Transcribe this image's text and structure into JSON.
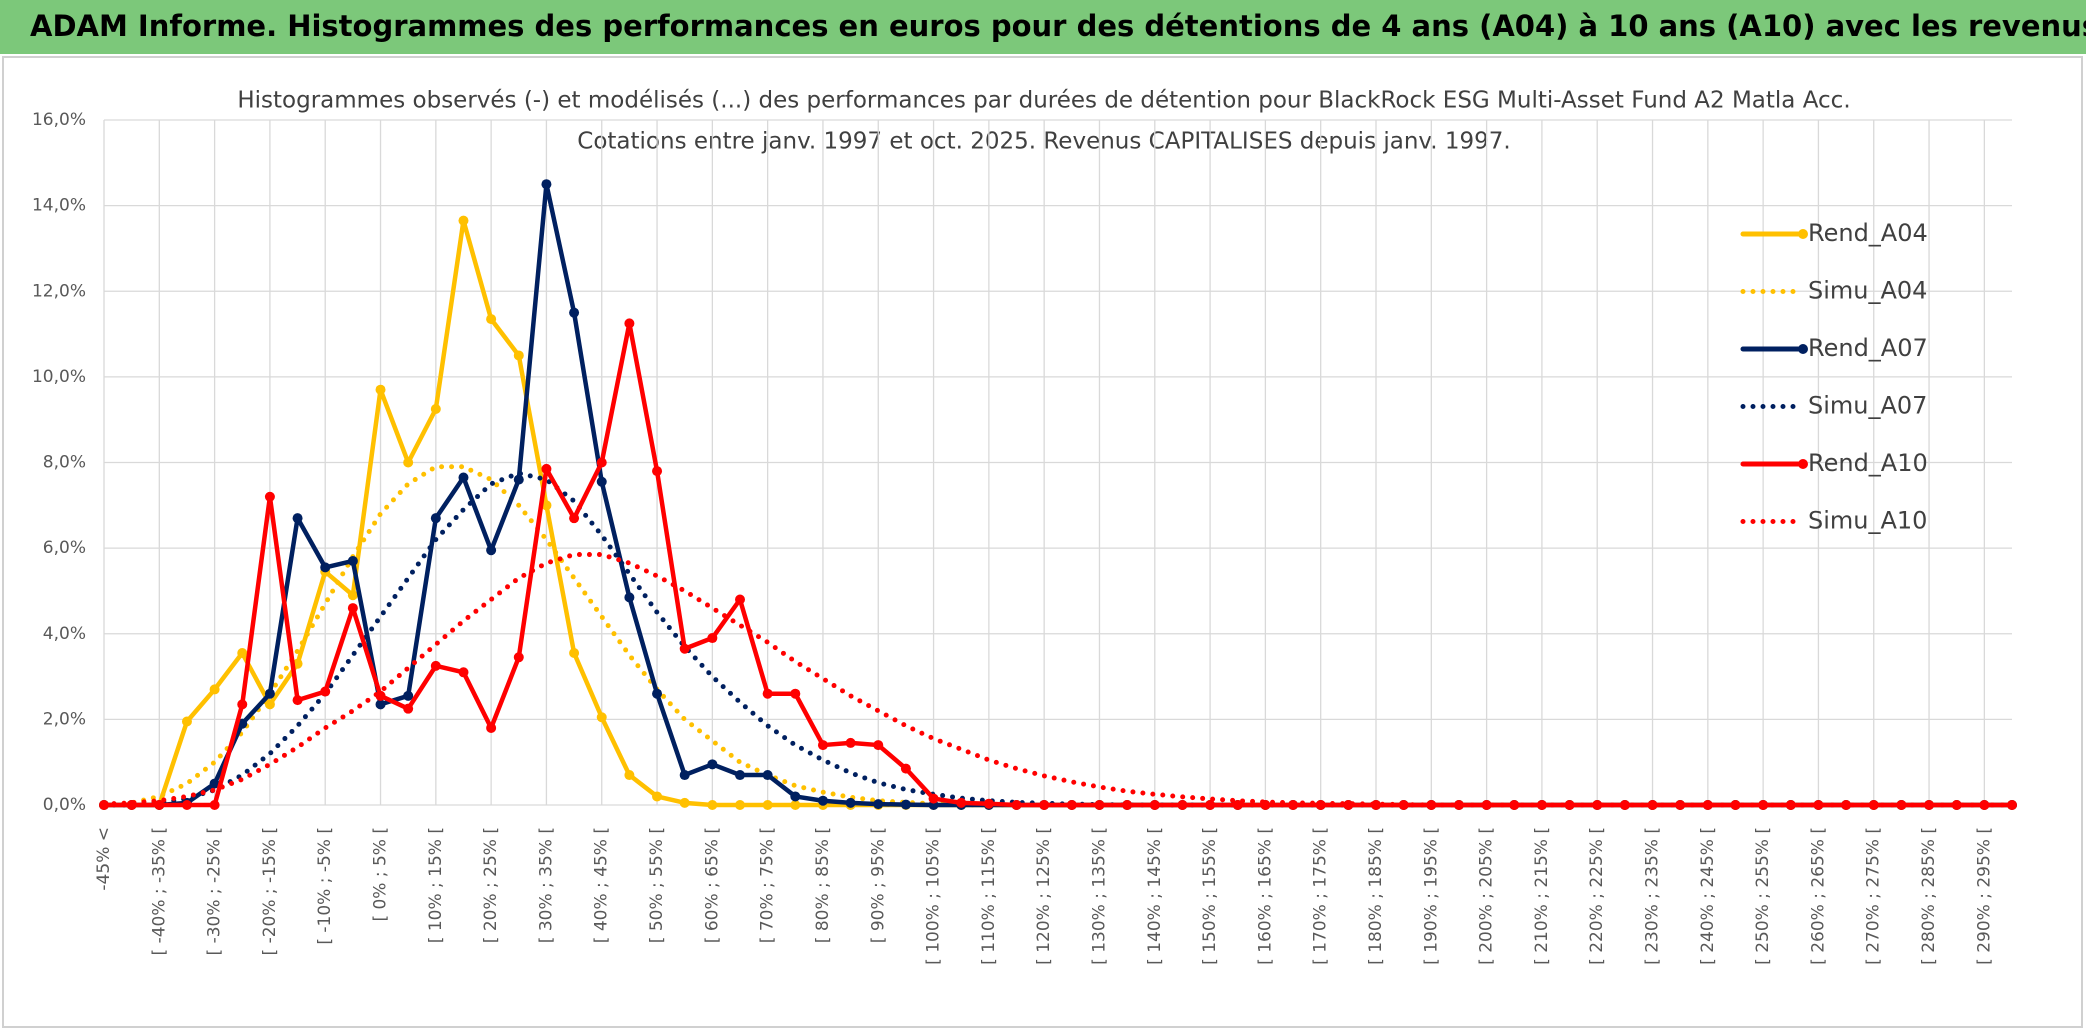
{
  "header": {
    "title": "ADAM Informe. Histogrammes des performances en euros pour des détentions de 4 ans (A04) à 10 ans (A10) avec les revenus connus capitalisés"
  },
  "chart_data": {
    "type": "line",
    "title": [
      "Histogrammes observés (-) et modélisés (...) des performances par durées de détention pour BlackRock ESG Multi-Asset Fund A2 Matla Acc.",
      "Cotations entre janv. 1997 et oct. 2025. Revenus CAPITALISES depuis janv. 1997."
    ],
    "categories": [
      "-45% <",
      null,
      "[ -40% ; -35% [",
      null,
      "[ -30% ; -25% [",
      null,
      "[ -20% ; -15% [",
      null,
      "[ -10% ; -5% [",
      null,
      "[ 0% ; 5% [",
      null,
      "[ 10% ; 15% [",
      null,
      "[ 20% ; 25% [",
      null,
      "[ 30% ; 35% [",
      null,
      "[ 40% ; 45% [",
      null,
      "[ 50% ; 55% [",
      null,
      "[ 60% ; 65% [",
      null,
      "[ 70% ; 75% [",
      null,
      "[ 80% ; 85% [",
      null,
      "[ 90% ; 95% [",
      null,
      "[ 100% ; 105% [",
      null,
      "[ 110% ; 115% [",
      null,
      "[ 120% ; 125% [",
      null,
      "[ 130% ; 135% [",
      null,
      "[ 140% ; 145% [",
      null,
      "[ 150% ; 155% [",
      null,
      "[ 160% ; 165% [",
      null,
      "[ 170% ; 175% [",
      null,
      "[ 180% ; 185% [",
      null,
      "[ 190% ; 195% [",
      null,
      "[ 200% ; 205% [",
      null,
      "[ 210% ; 215% [",
      null,
      "[ 220% ; 225% [",
      null,
      "[ 230% ; 235% [",
      null,
      "[ 240% ; 245% [",
      null,
      "[ 250% ; 255% [",
      null,
      "[ 260% ; 265% [",
      null,
      "[ 270% ; 275% [",
      null,
      "[ 280% ; 285% [",
      null,
      "[ 290% ; 295% [",
      null
    ],
    "series": [
      {
        "name": "Rend_A04",
        "color": "#ffc000",
        "style": "solid",
        "markers": true,
        "values": [
          0,
          0,
          0,
          1.95,
          2.7,
          3.55,
          2.35,
          3.3,
          5.45,
          4.9,
          9.7,
          8.0,
          9.25,
          13.65,
          11.35,
          10.5,
          7.0,
          3.55,
          2.05,
          0.7,
          0.2,
          0.05,
          0,
          0,
          0,
          0,
          0,
          0,
          0,
          0,
          0,
          0,
          0,
          0,
          0,
          0,
          0,
          0,
          0,
          0,
          0,
          0,
          0,
          0,
          0,
          0,
          0,
          0,
          0,
          0,
          0,
          0,
          0,
          0,
          0,
          0,
          0,
          0,
          0,
          0,
          0,
          0,
          0,
          0,
          0,
          0,
          0,
          0,
          0,
          0
        ]
      },
      {
        "name": "Simu_A04",
        "color": "#ffc000",
        "style": "dotted",
        "markers": false,
        "values": [
          0,
          0.05,
          0.2,
          0.5,
          1.0,
          1.7,
          2.6,
          3.6,
          4.7,
          5.8,
          6.8,
          7.5,
          7.9,
          7.9,
          7.6,
          7.0,
          6.2,
          5.3,
          4.4,
          3.5,
          2.7,
          2.0,
          1.5,
          1.0,
          0.7,
          0.45,
          0.3,
          0.18,
          0.1,
          0.06,
          0.03,
          0,
          0,
          0,
          0,
          0,
          0,
          0,
          0,
          0,
          0,
          0,
          0,
          0,
          0,
          0,
          0,
          0,
          0,
          0,
          0,
          0,
          0,
          0,
          0,
          0,
          0,
          0,
          0,
          0,
          0,
          0,
          0,
          0,
          0,
          0,
          0,
          0,
          0,
          0
        ]
      },
      {
        "name": "Rend_A07",
        "color": "#002060",
        "style": "solid",
        "markers": true,
        "values": [
          0,
          0,
          0,
          0.05,
          0.5,
          1.9,
          2.6,
          6.7,
          5.55,
          5.7,
          2.35,
          2.55,
          6.7,
          7.65,
          5.95,
          7.6,
          14.5,
          11.5,
          7.55,
          4.85,
          2.6,
          0.7,
          0.95,
          0.7,
          0.7,
          0.2,
          0.1,
          0.05,
          0.02,
          0.01,
          0,
          0,
          0,
          0,
          0,
          0,
          0,
          0,
          0,
          0,
          0,
          0,
          0,
          0,
          0,
          0,
          0,
          0,
          0,
          0,
          0,
          0,
          0,
          0,
          0,
          0,
          0,
          0,
          0,
          0,
          0,
          0,
          0,
          0,
          0,
          0,
          0,
          0,
          0,
          0
        ]
      },
      {
        "name": "Simu_A07",
        "color": "#002060",
        "style": "dotted",
        "markers": false,
        "values": [
          0,
          0,
          0.05,
          0.15,
          0.35,
          0.7,
          1.2,
          1.85,
          2.6,
          3.5,
          4.4,
          5.3,
          6.2,
          6.9,
          7.5,
          7.75,
          7.6,
          7.1,
          6.3,
          5.4,
          4.5,
          3.7,
          3.0,
          2.4,
          1.85,
          1.4,
          1.05,
          0.75,
          0.52,
          0.36,
          0.25,
          0.16,
          0.1,
          0.06,
          0.04,
          0.02,
          0.01,
          0,
          0,
          0,
          0,
          0,
          0,
          0,
          0,
          0,
          0,
          0,
          0,
          0,
          0,
          0,
          0,
          0,
          0,
          0,
          0,
          0,
          0,
          0,
          0,
          0,
          0,
          0,
          0,
          0,
          0,
          0,
          0,
          0
        ]
      },
      {
        "name": "Rend_A10",
        "color": "#ff0000",
        "style": "solid",
        "markers": true,
        "values": [
          0,
          0,
          0,
          0,
          0,
          2.35,
          7.2,
          2.45,
          2.65,
          4.6,
          2.55,
          2.25,
          3.25,
          3.1,
          1.8,
          3.45,
          7.85,
          6.7,
          8.0,
          11.25,
          7.8,
          3.65,
          3.9,
          4.8,
          2.6,
          2.6,
          1.4,
          1.45,
          1.4,
          0.85,
          0.15,
          0.05,
          0.03,
          0,
          0,
          0,
          0,
          0,
          0,
          0,
          0,
          0,
          0,
          0,
          0,
          0,
          0,
          0,
          0,
          0,
          0,
          0,
          0,
          0,
          0,
          0,
          0,
          0,
          0,
          0,
          0,
          0,
          0,
          0,
          0,
          0,
          0,
          0,
          0,
          0
        ]
      },
      {
        "name": "Simu_A10",
        "color": "#ff0000",
        "style": "dotted",
        "markers": false,
        "values": [
          0.02,
          0.05,
          0.1,
          0.2,
          0.35,
          0.6,
          0.95,
          1.35,
          1.8,
          2.2,
          2.65,
          3.2,
          3.75,
          4.3,
          4.8,
          5.3,
          5.65,
          5.85,
          5.85,
          5.65,
          5.35,
          5.0,
          4.6,
          4.2,
          3.8,
          3.35,
          2.95,
          2.55,
          2.2,
          1.85,
          1.55,
          1.3,
          1.05,
          0.85,
          0.68,
          0.54,
          0.42,
          0.32,
          0.25,
          0.19,
          0.14,
          0.1,
          0.07,
          0.05,
          0.04,
          0.03,
          0.02,
          0.01,
          0,
          0,
          0,
          0,
          0,
          0,
          0,
          0,
          0,
          0,
          0,
          0,
          0,
          0,
          0,
          0,
          0,
          0,
          0,
          0,
          0,
          0
        ]
      }
    ],
    "ylim": [
      0,
      16
    ],
    "yticks": [
      {
        "value": 0,
        "label": "0,0%"
      },
      {
        "value": 2,
        "label": "2,0%"
      },
      {
        "value": 4,
        "label": "4,0%"
      },
      {
        "value": 6,
        "label": "6,0%"
      },
      {
        "value": 8,
        "label": "8,0%"
      },
      {
        "value": 10,
        "label": "10,0%"
      },
      {
        "value": 12,
        "label": "12,0%"
      },
      {
        "value": 14,
        "label": "14,0%"
      },
      {
        "value": 16,
        "label": "16,0%"
      }
    ],
    "grid": true,
    "legend": "right"
  }
}
